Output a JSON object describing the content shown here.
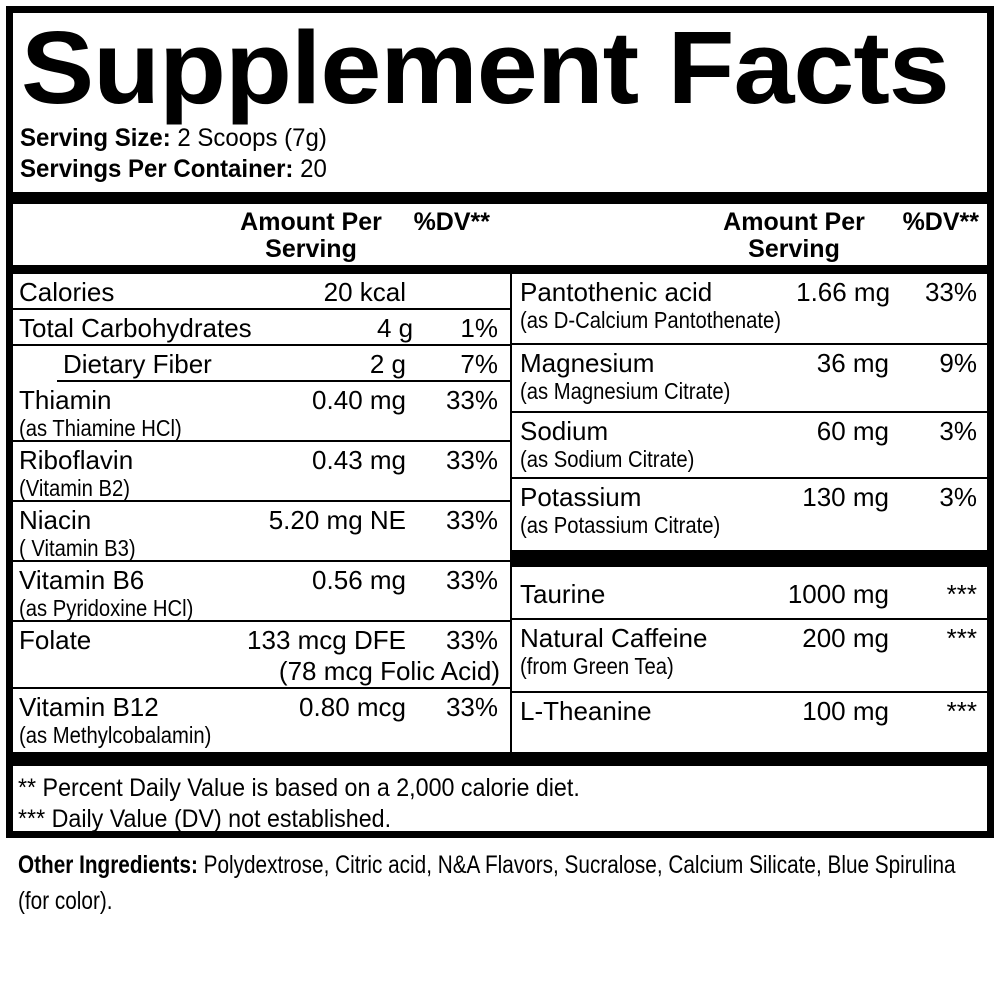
{
  "title": "Supplement Facts",
  "serving": {
    "size_label": "Serving Size:",
    "size_value": "2 Scoops (7g)",
    "container_label": "Servings Per Container:",
    "container_value": "20"
  },
  "column_header": {
    "amount_line1": "Amount Per",
    "amount_line2": "Serving",
    "dv": "%DV**"
  },
  "left_rows": [
    {
      "name": "Calories",
      "amount": "20 kcal",
      "dv": ""
    },
    {
      "name": "Total Carbohydrates",
      "amount": "4 g",
      "dv": "1%"
    },
    {
      "name": "Dietary Fiber",
      "amount": "2 g",
      "dv": "7%",
      "indent": true
    },
    {
      "name": "Thiamin",
      "sub": "(as Thiamine HCl)",
      "amount": "0.40 mg",
      "dv": "33%"
    },
    {
      "name": "Riboflavin",
      "sub": "(Vitamin B2)",
      "amount": "0.43 mg",
      "dv": "33%"
    },
    {
      "name": "Niacin",
      "sub": "( Vitamin B3)",
      "amount": "5.20 mg NE",
      "dv": "33%"
    },
    {
      "name": "Vitamin B6",
      "sub": "(as Pyridoxine HCl)",
      "amount": "0.56 mg",
      "dv": "33%"
    },
    {
      "name": "Folate",
      "amount": "133 mcg DFE",
      "amount2": "(78 mcg Folic Acid)",
      "dv": "33%"
    },
    {
      "name": "Vitamin B12",
      "sub": "(as Methylcobalamin)",
      "amount": "0.80 mcg",
      "dv": "33%"
    }
  ],
  "right_rows": [
    {
      "name": "Pantothenic acid",
      "sub": "(as D-Calcium Pantothenate)",
      "amount": "1.66 mg",
      "dv": "33%"
    },
    {
      "name": "Magnesium",
      "sub": "(as Magnesium Citrate)",
      "amount": "36 mg",
      "dv": "9%"
    },
    {
      "name": "Sodium",
      "sub": "(as Sodium Citrate)",
      "amount": "60 mg",
      "dv": "3%"
    },
    {
      "name": "Potassium",
      "sub": "(as Potassium Citrate)",
      "amount": "130 mg",
      "dv": "3%"
    },
    {
      "separator": true
    },
    {
      "name": "Taurine",
      "amount": "1000 mg",
      "dv": "***"
    },
    {
      "name": "Natural Caffeine",
      "sub": "(from Green Tea)",
      "amount": "200 mg",
      "dv": "***"
    },
    {
      "name": "L-Theanine",
      "amount": "100 mg",
      "dv": "***"
    }
  ],
  "footnotes": [
    "** Percent Daily Value is based on a 2,000 calorie diet.",
    "*** Daily Value (DV) not established."
  ],
  "other_ingredients": {
    "label": "Other Ingredients:",
    "text": "Polydextrose, Citric acid, N&A Flavors, Sucralose, Calcium Silicate, Blue Spirulina (for color)."
  },
  "colors": {
    "text": "#000000",
    "background": "#ffffff"
  }
}
